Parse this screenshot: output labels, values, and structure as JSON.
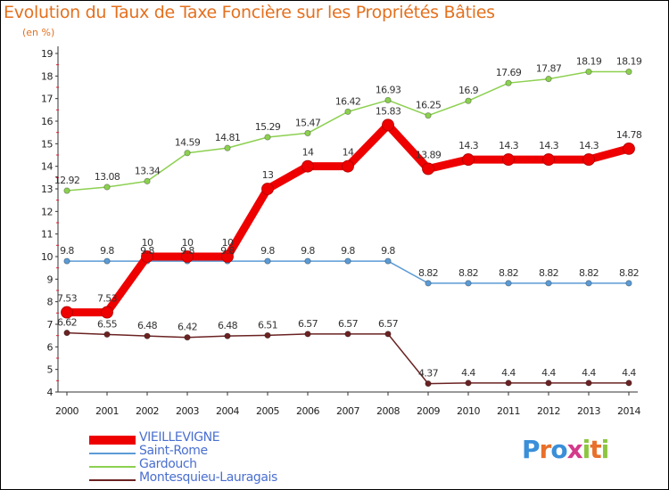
{
  "header": {
    "title": "Evolution du Taux de Taxe Foncière sur les Propriétés Bâties",
    "subtitle": "(en %)"
  },
  "brand": {
    "text": "Proxiti"
  },
  "chart_data": {
    "type": "line",
    "title": "Evolution du Taux de Taxe Foncière sur les Propriétés Bâties",
    "ylabel": "(en %)",
    "xlabel": "",
    "ylim": [
      4,
      19
    ],
    "yticks": [
      "4",
      "5",
      "6",
      "7",
      "8",
      "9",
      "10",
      "11",
      "12",
      "13",
      "14",
      "15",
      "16",
      "17",
      "18",
      "19"
    ],
    "grid": false,
    "legend": "bottom-left",
    "x": [
      "2000",
      "2001",
      "2002",
      "2003",
      "2004",
      "2005",
      "2006",
      "2007",
      "2008",
      "2009",
      "2010",
      "2011",
      "2012",
      "2013",
      "2014"
    ],
    "series": [
      {
        "name": "VIEILLEVIGNE",
        "color": "#ee0000",
        "values": [
          7.53,
          7.53,
          10,
          10,
          10,
          13,
          14,
          14,
          15.83,
          13.89,
          14.3,
          14.3,
          14.3,
          14.3,
          14.78
        ],
        "labels": [
          "7.53",
          "7.53",
          "10",
          "10",
          "10",
          "13",
          "14",
          "14",
          "15.83",
          "13.89",
          "14.3",
          "14.3",
          "14.3",
          "14.3",
          "14.78"
        ]
      },
      {
        "name": "Saint-Rome",
        "color": "#5b9bd5",
        "values": [
          9.8,
          9.8,
          9.8,
          9.8,
          9.8,
          9.8,
          9.8,
          9.8,
          9.8,
          8.82,
          8.82,
          8.82,
          8.82,
          8.82,
          8.82
        ],
        "labels": [
          "9.8",
          "9.8",
          "9.8",
          "9.8",
          "9.8",
          "9.8",
          "9.8",
          "9.8",
          "9.8",
          "8.82",
          "8.82",
          "8.82",
          "8.82",
          "8.82",
          "8.82"
        ]
      },
      {
        "name": "Gardouch",
        "color": "#8cd050",
        "values": [
          12.92,
          13.08,
          13.34,
          14.59,
          14.81,
          15.29,
          15.47,
          16.42,
          16.93,
          16.25,
          16.9,
          17.69,
          17.87,
          18.19,
          18.19
        ],
        "labels": [
          "12.92",
          "13.08",
          "13.34",
          "14.59",
          "14.81",
          "15.29",
          "15.47",
          "16.42",
          "16.93",
          "16.25",
          "16.9",
          "17.69",
          "17.87",
          "18.19",
          "18.19"
        ]
      },
      {
        "name": "Montesquieu-Lauragais",
        "color": "#6b2222",
        "values": [
          6.62,
          6.55,
          6.48,
          6.42,
          6.48,
          6.51,
          6.57,
          6.57,
          6.57,
          4.37,
          4.4,
          4.4,
          4.4,
          4.4,
          4.4
        ],
        "labels": [
          "6.62",
          "6.55",
          "6.48",
          "6.42",
          "6.48",
          "6.51",
          "6.57",
          "6.57",
          "6.57",
          "4.37",
          "4.4",
          "4.4",
          "4.4",
          "4.4",
          "4.4"
        ]
      }
    ]
  }
}
